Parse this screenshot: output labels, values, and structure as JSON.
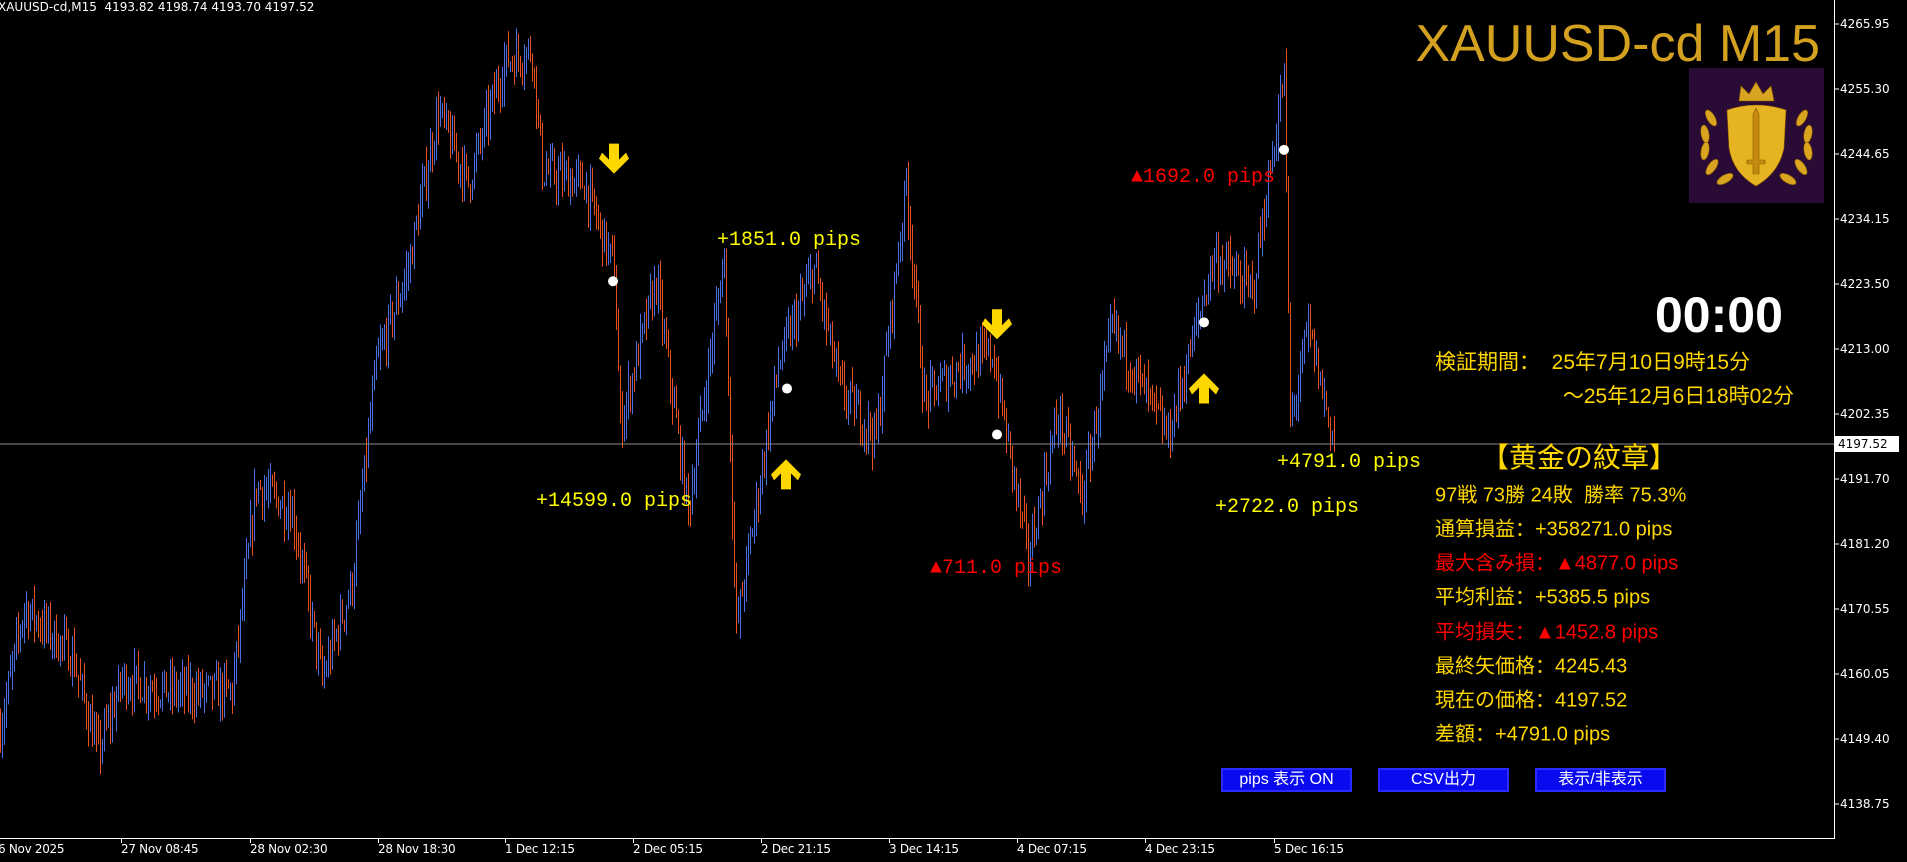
{
  "header": {
    "symbol_info": "XAUUSD-cd,M15  4193.82 4198.74 4193.70 4197.52"
  },
  "overlay": {
    "title": "XAUUSD-cd M15",
    "clock": "00:00",
    "period_from": "検証期間：  25年7月10日9時15分",
    "period_to": "～25年12月6日18時02分",
    "panel_title": "【黄金の紋章】",
    "stats": [
      {
        "text": "97戦 73勝 24敗  勝率 75.3%",
        "color": "#FFD700"
      },
      {
        "text": "通算損益：+358271.0 pips",
        "color": "#FFD700"
      },
      {
        "text": "最大含み損：▲4877.0 pips",
        "color": "#FF0000"
      },
      {
        "text": "平均利益：+5385.5 pips",
        "color": "#FFD700"
      },
      {
        "text": "平均損失：▲1452.8 pips",
        "color": "#FF0000"
      },
      {
        "text": "最終矢価格：4245.43",
        "color": "#FFD700"
      },
      {
        "text": "現在の価格：4197.52",
        "color": "#FFD700"
      },
      {
        "text": "差額：+4791.0 pips",
        "color": "#FFD700"
      }
    ],
    "buttons": {
      "pips_toggle": "pips 表示 ON",
      "csv": "CSV出力",
      "show_hide": "表示/非表示"
    },
    "trade_labels": [
      {
        "text": "+1851.0 pips",
        "color": "#FFFF00"
      },
      {
        "text": "+14599.0 pips",
        "color": "#FFFF00"
      },
      {
        "text": "▲711.0 pips",
        "color": "#FF0000"
      },
      {
        "text": "▲1692.0 pips",
        "color": "#FF0000"
      },
      {
        "text": "+4791.0 pips",
        "color": "#FFFF00"
      },
      {
        "text": "+2722.0 pips",
        "color": "#FFFF00"
      }
    ],
    "signals": [
      {
        "type": "sell",
        "icon": "arrow-down-icon",
        "price": 4243.5
      },
      {
        "type": "buy",
        "icon": "arrow-up-icon",
        "price": 4193.0
      },
      {
        "type": "sell",
        "icon": "arrow-down-icon",
        "price": 4216.5
      },
      {
        "type": "buy",
        "icon": "arrow-up-icon",
        "price": 4207.0
      }
    ],
    "entry_dots_prices": [
      4224.0,
      4206.5,
      4199.0,
      4217.3,
      4245.43
    ]
  },
  "chart_data": {
    "type": "ohlc-bars",
    "symbol": "XAUUSD-cd",
    "timeframe": "M15",
    "colors": {
      "up": "#4A6FE3",
      "down": "#E8501E",
      "background": "#000000",
      "axis": "#FFFFFF",
      "current_price_line": "#8A8A8A",
      "signal": "#FFD700"
    },
    "last_ohlc": {
      "open": 4193.82,
      "high": 4198.74,
      "low": 4193.7,
      "close": 4197.52
    },
    "current_price": "4197.52",
    "y_ticks": [
      "4265.95",
      "4255.30",
      "4244.65",
      "4234.15",
      "4223.50",
      "4213.00",
      "4202.35",
      "4191.70",
      "4181.20",
      "4170.55",
      "4160.05",
      "4149.40",
      "4138.75"
    ],
    "ylim": [
      4134.0,
      4270.0
    ],
    "x_ticks": [
      "6 Nov 2025",
      "27 Nov 08:45",
      "28 Nov 02:30",
      "28 Nov 18:30",
      "1 Dec 12:15",
      "2 Dec 05:15",
      "2 Dec 21:15",
      "3 Dec 14:15",
      "4 Dec 07:15",
      "4 Dec 23:15",
      "5 Dec 16:15"
    ],
    "approx_close_path": [
      [
        0,
        4151.1
      ],
      [
        12,
        4170.9
      ],
      [
        36,
        4163.0
      ],
      [
        49,
        4147.2
      ],
      [
        61,
        4159.0
      ],
      [
        85,
        4157.1
      ],
      [
        116,
        4157.1
      ],
      [
        128,
        4190.7
      ],
      [
        146,
        4186.6
      ],
      [
        161,
        4159.0
      ],
      [
        176,
        4174.8
      ],
      [
        188,
        4210.3
      ],
      [
        204,
        4226.1
      ],
      [
        219,
        4251.8
      ],
      [
        234,
        4239.9
      ],
      [
        252,
        4259.7
      ],
      [
        266,
        4261.7
      ],
      [
        271,
        4242.0
      ],
      [
        292,
        4239.9
      ],
      [
        307,
        4226.1
      ],
      [
        310,
        4200.5
      ],
      [
        328,
        4224.1
      ],
      [
        344,
        4186.6
      ],
      [
        362,
        4228.2
      ],
      [
        368,
        4167.0
      ],
      [
        389,
        4210.3
      ],
      [
        407,
        4226.1
      ],
      [
        420,
        4206.4
      ],
      [
        438,
        4198.5
      ],
      [
        453,
        4239.9
      ],
      [
        462,
        4204.5
      ],
      [
        480,
        4210.3
      ],
      [
        496,
        4212.3
      ],
      [
        514,
        4178.8
      ],
      [
        529,
        4202.4
      ],
      [
        541,
        4188.6
      ],
      [
        556,
        4216.3
      ],
      [
        584,
        4198.5
      ],
      [
        607,
        4228.2
      ],
      [
        626,
        4222.2
      ],
      [
        642,
        4257.7
      ],
      [
        645,
        4200.5
      ],
      [
        654,
        4216.3
      ],
      [
        667,
        4197.52
      ]
    ]
  }
}
